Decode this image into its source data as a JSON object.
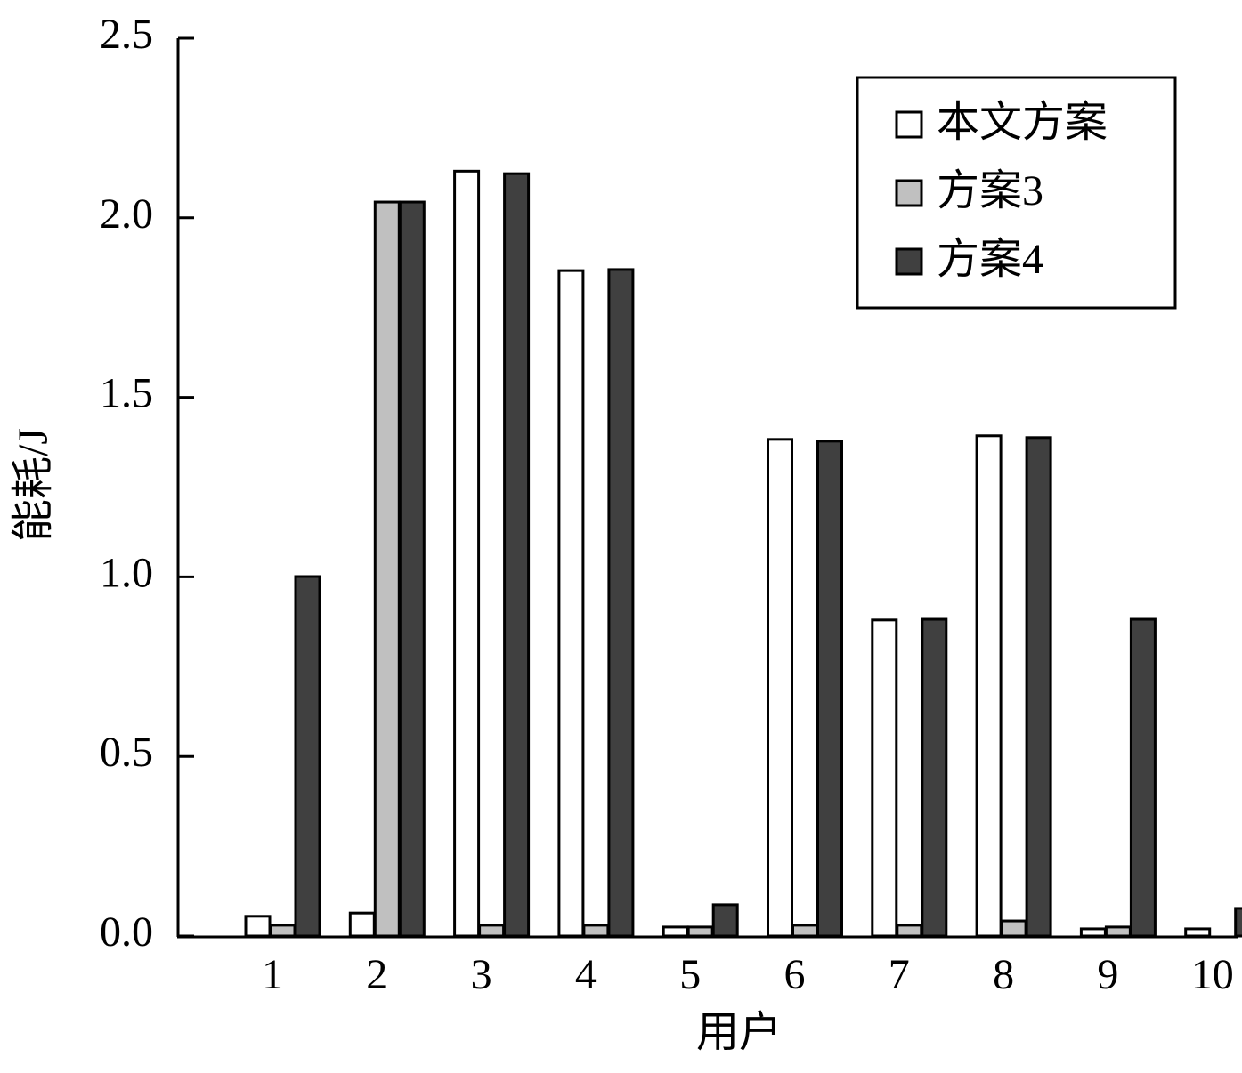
{
  "chart_data": {
    "type": "bar",
    "x_label": "用户",
    "y_label": "能耗/J",
    "categories": [
      "1",
      "2",
      "3",
      "4",
      "5",
      "6",
      "7",
      "8",
      "9",
      "10"
    ],
    "series": [
      {
        "name": "本文方案",
        "color": "#ffffff",
        "values": [
          0.055,
          0.064,
          2.13,
          1.853,
          0.025,
          1.383,
          0.88,
          1.393,
          0.02,
          0.02
        ]
      },
      {
        "name": "方案3",
        "color": "#c0c0c0",
        "values": [
          0.03,
          2.044,
          0.03,
          0.03,
          0.025,
          0.03,
          0.03,
          0.042,
          0.025,
          0
        ]
      },
      {
        "name": "方案4",
        "color": "#404040",
        "values": [
          1.001,
          2.044,
          2.123,
          1.856,
          0.087,
          1.378,
          0.882,
          1.388,
          0.882,
          0.077
        ]
      }
    ],
    "ylim": [
      0,
      2.5
    ],
    "yticks": [
      {
        "value": 0,
        "label": "0.0"
      },
      0.5,
      {
        "value": 1,
        "label": "1.0"
      },
      1.5,
      {
        "value": 2,
        "label": "2.0"
      },
      2.5
    ],
    "legend": "upper right"
  }
}
